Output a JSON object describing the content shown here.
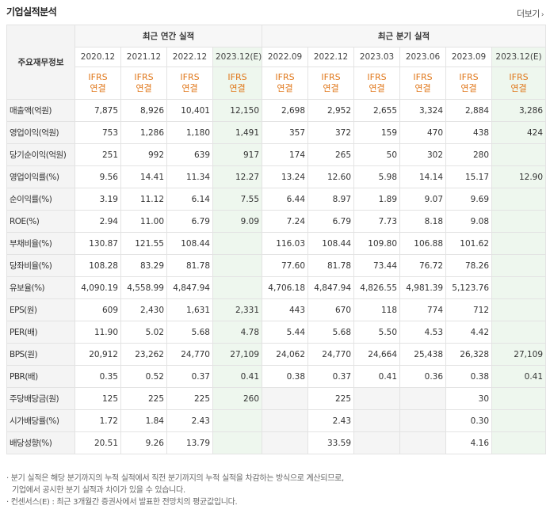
{
  "header": {
    "title": "기업실적분석",
    "more_label": "더보기"
  },
  "groups": {
    "label_head": "주요재무정보",
    "annual": "최근 연간 실적",
    "quarter": "최근 분기 실적"
  },
  "periods": [
    "2020.12",
    "2021.12",
    "2022.12",
    "2023.12(E)",
    "2022.09",
    "2022.12",
    "2023.03",
    "2023.06",
    "2023.09",
    "2023.12(E)"
  ],
  "standard": {
    "line1": "IFRS",
    "line2": "연결"
  },
  "rows": [
    {
      "label": "매출액(억원)",
      "values": [
        "7,875",
        "8,926",
        "10,401",
        "12,150",
        "2,698",
        "2,952",
        "2,655",
        "3,324",
        "2,884",
        "3,286"
      ]
    },
    {
      "label": "영업이익(억원)",
      "values": [
        "753",
        "1,286",
        "1,180",
        "1,491",
        "357",
        "372",
        "159",
        "470",
        "438",
        "424"
      ]
    },
    {
      "label": "당기순이익(억원)",
      "values": [
        "251",
        "992",
        "639",
        "917",
        "174",
        "265",
        "50",
        "302",
        "280",
        ""
      ]
    },
    {
      "label": "영업이익률(%)",
      "values": [
        "9.56",
        "14.41",
        "11.34",
        "12.27",
        "13.24",
        "12.60",
        "5.98",
        "14.14",
        "15.17",
        "12.90"
      ]
    },
    {
      "label": "순이익률(%)",
      "values": [
        "3.19",
        "11.12",
        "6.14",
        "7.55",
        "6.44",
        "8.97",
        "1.89",
        "9.07",
        "9.69",
        ""
      ]
    },
    {
      "label": "ROE(%)",
      "values": [
        "2.94",
        "11.00",
        "6.79",
        "9.09",
        "7.24",
        "6.79",
        "7.73",
        "8.18",
        "9.08",
        ""
      ]
    },
    {
      "label": "부채비율(%)",
      "values": [
        "130.87",
        "121.55",
        "108.44",
        "",
        "116.03",
        "108.44",
        "109.80",
        "106.88",
        "101.62",
        ""
      ]
    },
    {
      "label": "당좌비율(%)",
      "values": [
        "108.28",
        "83.29",
        "81.78",
        "",
        "77.60",
        "81.78",
        "73.44",
        "76.72",
        "78.26",
        ""
      ]
    },
    {
      "label": "유보율(%)",
      "values": [
        "4,090.19",
        "4,558.99",
        "4,847.94",
        "",
        "4,706.18",
        "4,847.94",
        "4,826.55",
        "4,981.39",
        "5,123.76",
        ""
      ]
    },
    {
      "label": "EPS(원)",
      "values": [
        "609",
        "2,430",
        "1,631",
        "2,331",
        "443",
        "670",
        "118",
        "774",
        "712",
        ""
      ]
    },
    {
      "label": "PER(배)",
      "values": [
        "11.90",
        "5.02",
        "5.68",
        "4.78",
        "5.44",
        "5.68",
        "5.50",
        "4.53",
        "4.42",
        ""
      ]
    },
    {
      "label": "BPS(원)",
      "values": [
        "20,912",
        "23,262",
        "24,770",
        "27,109",
        "24,062",
        "24,770",
        "24,664",
        "25,438",
        "26,328",
        "27,109"
      ]
    },
    {
      "label": "PBR(배)",
      "values": [
        "0.35",
        "0.52",
        "0.37",
        "0.41",
        "0.38",
        "0.37",
        "0.41",
        "0.36",
        "0.38",
        "0.41"
      ]
    },
    {
      "label": "주당배당금(원)",
      "values": [
        "125",
        "225",
        "225",
        "260",
        "",
        "225",
        "",
        "",
        "30",
        ""
      ]
    },
    {
      "label": "시가배당률(%)",
      "values": [
        "1.72",
        "1.84",
        "2.43",
        "",
        "",
        "2.43",
        "",
        "",
        "0.30",
        ""
      ]
    },
    {
      "label": "배당성향(%)",
      "values": [
        "20.51",
        "9.26",
        "13.79",
        "",
        "",
        "33.59",
        "",
        "",
        "4.16",
        ""
      ]
    }
  ],
  "notes": {
    "n1a": "· 분기 실적은 해당 분기까지의 누적 실적에서 직전 분기까지의 누적 실적을 차감하는 방식으로 계산되므로,",
    "n1b": "기업에서 공시한 분기 실적과 차이가 있을 수 있습니다.",
    "n2": "· 컨센서스(E) : 최근 3개월간 증권사에서 발표한 전망치의 평균값입니다."
  }
}
